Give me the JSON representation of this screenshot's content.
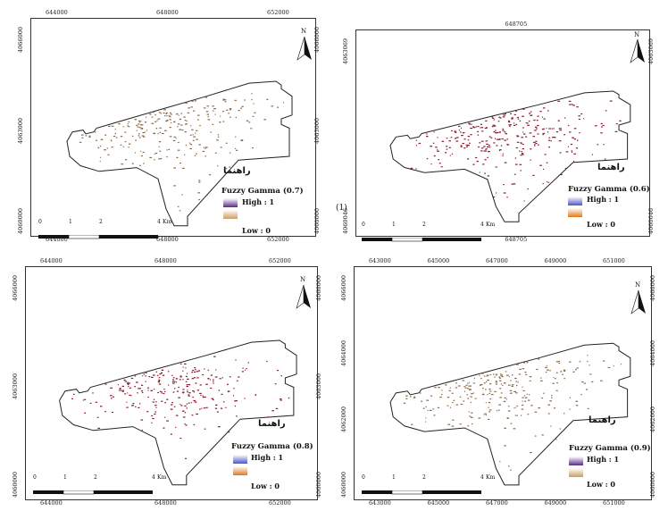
{
  "map_label": "(1)",
  "panels": [
    {
      "id": "p07",
      "legend_title": "Fuzzy Gamma (0.7)",
      "high_label": "High : 1",
      "low_label": "Low : 0",
      "persian_label": "راهنما",
      "north": "N",
      "top_ticks": [
        "644000",
        "648000",
        "652000"
      ],
      "bottom_ticks": [
        "644000",
        "648000",
        "652000"
      ],
      "left_ticks": [
        "4066000",
        "4063000",
        "4060000"
      ],
      "right_ticks": [
        "4066000",
        "4063000",
        "4060000"
      ],
      "scale_labels": [
        "0",
        "1",
        "2",
        "4",
        "Km"
      ],
      "dot_color": "#8b6b47",
      "high_color": "#5b2a8a",
      "low_color": "#c8a064"
    },
    {
      "id": "p06",
      "legend_title": "Fuzzy Gamma (0.6)",
      "high_label": "High : 1",
      "low_label": "Low : 0",
      "persian_label": "راهنما",
      "north": "N",
      "top_ticks": [
        "648705"
      ],
      "bottom_ticks": [
        "648705"
      ],
      "left_ticks": [
        "4063069",
        "4060046"
      ],
      "right_ticks": [
        "4063069",
        "4060046"
      ],
      "scale_labels": [
        "0",
        "1",
        "2",
        "4",
        "Km"
      ],
      "dot_color": "#8b1a2a",
      "high_color": "#4a58c8",
      "low_color": "#e07820"
    },
    {
      "id": "p08",
      "legend_title": "Fuzzy Gamma (0.8)",
      "high_label": "High : 1",
      "low_label": "Low : 0",
      "persian_label": "راهنما",
      "north": "N",
      "top_ticks": [
        "644000",
        "648000",
        "652000"
      ],
      "bottom_ticks": [
        "644000",
        "648000",
        "652000"
      ],
      "left_ticks": [
        "4066000",
        "4063000",
        "4060000"
      ],
      "right_ticks": [
        "4066000",
        "4063000",
        "4060000"
      ],
      "scale_labels": [
        "0",
        "1",
        "2",
        "4",
        "Km"
      ],
      "dot_color": "#8b1a2a",
      "high_color": "#4a58c8",
      "low_color": "#e07820"
    },
    {
      "id": "p09",
      "legend_title": "Fuzzy Gamma (0.9)",
      "high_label": "High : 1",
      "low_label": "Low : 0",
      "persian_label": "راهنما",
      "north": "N",
      "top_ticks": [
        "643000",
        "645000",
        "647000",
        "649000",
        "651000"
      ],
      "bottom_ticks": [
        "643000",
        "645000",
        "647000",
        "649000",
        "651000"
      ],
      "left_ticks": [
        "4066000",
        "4064000",
        "4062000",
        "4060000"
      ],
      "right_ticks": [
        "4066000",
        "4064000",
        "4062000",
        "4060000"
      ],
      "scale_labels": [
        "0",
        "1",
        "2",
        "4",
        "Km"
      ],
      "dot_color": "#8b6b47",
      "high_color": "#5b2a8a",
      "low_color": "#c8a064"
    }
  ]
}
